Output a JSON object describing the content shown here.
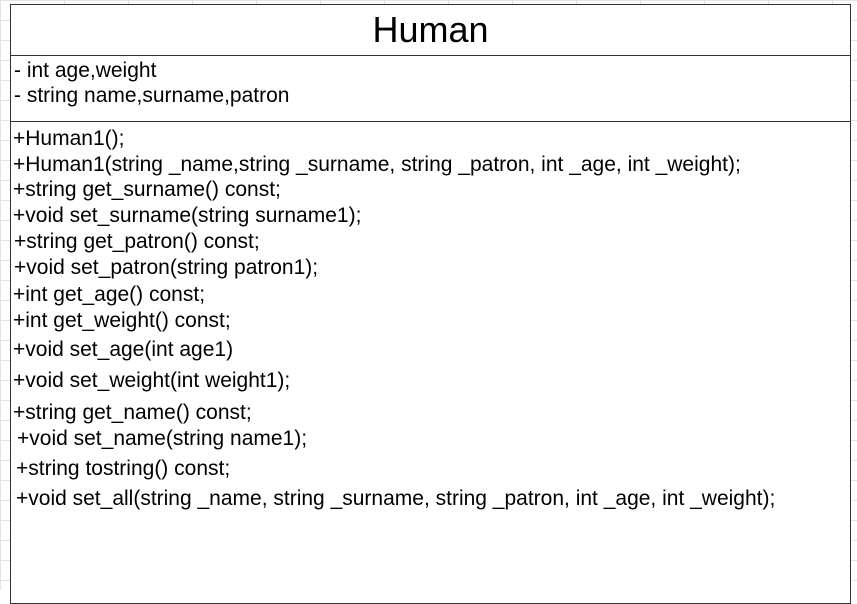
{
  "class_name": "Human",
  "attributes": [
    "- int age,weight",
    "- string name,surname,patron"
  ],
  "methods": [
    "+Human1();",
    "+Human1(string _name,string _surname, string _patron, int _age, int _weight);",
    "+string get_surname() const;",
    "+void set_surname(string surname1);",
    "+string get_patron() const;",
    "+void set_patron(string patron1);",
    "+int get_age() const;",
    "+int get_weight() const;",
    "+void set_age(int age1)",
    "+void set_weight(int weight1);",
    "+string get_name() const;",
    "+void set_name(string name1);",
    "+string tostring() const;",
    "+void set_all(string _name, string _surname, string _patron, int _age, int _weight);"
  ]
}
